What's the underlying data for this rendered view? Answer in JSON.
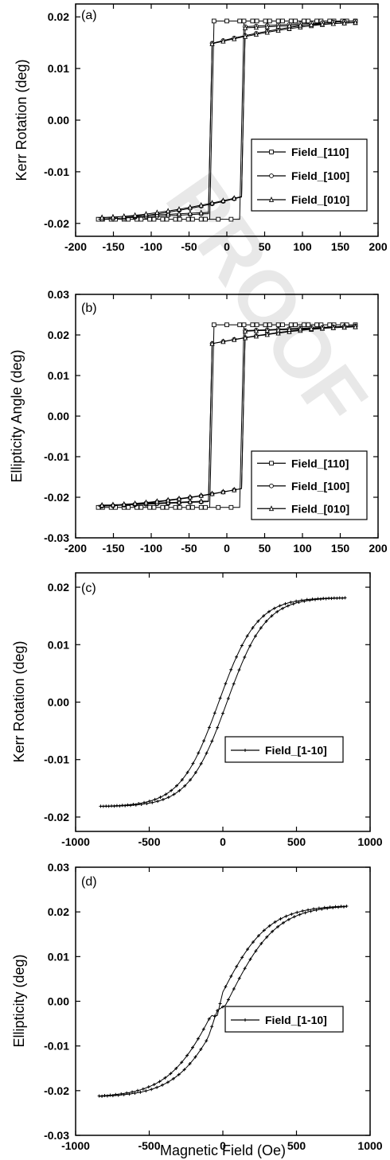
{
  "watermark": "PROOF",
  "chart_data": [
    {
      "type": "line",
      "panel_label": "(a)",
      "xlabel": "",
      "ylabel": "Kerr Rotation (deg)",
      "xlim": [
        -200,
        200
      ],
      "ylim": [
        -0.0225,
        0.0225
      ],
      "x_ticks": [
        -200,
        -150,
        -100,
        -50,
        0,
        50,
        100,
        150,
        200
      ],
      "x_tick_labels": [
        "-200",
        "-150",
        "-100",
        "-50",
        "0",
        "50",
        "100",
        "150",
        "200"
      ],
      "y_ticks": [
        -0.02,
        -0.01,
        0.0,
        0.01,
        0.02
      ],
      "y_tick_labels": [
        "-0.02",
        "-0.01",
        "0.00",
        "0.01",
        "0.02"
      ],
      "legend_position": "right",
      "series": [
        {
          "name": "Field_[110]",
          "marker": "square",
          "kind": "square",
          "Hc": 20,
          "sat": 0.0192,
          "tail_rise": 0,
          "tail_dir": 1,
          "edge": -0.0192
        },
        {
          "name": "Field_[100]",
          "marker": "circle",
          "kind": "tail",
          "Hc": 22,
          "sat": 0.0192,
          "tail_rise": 0.0044,
          "tail_dir": 1,
          "edge": -0.0192
        },
        {
          "name": "Field_[010]",
          "marker": "triangle",
          "kind": "tail",
          "Hc": 22,
          "sat": 0.0189,
          "tail_rise": 0.0042,
          "tail_dir": 1,
          "edge": -0.0189
        }
      ],
      "x_range": [
        -170,
        170
      ]
    },
    {
      "type": "line",
      "panel_label": "(b)",
      "xlabel": "",
      "ylabel": "Ellipticity Angle (deg)",
      "xlim": [
        -200,
        200
      ],
      "ylim": [
        -0.03,
        0.03
      ],
      "x_ticks": [
        -200,
        -150,
        -100,
        -50,
        0,
        50,
        100,
        150,
        200
      ],
      "x_tick_labels": [
        "-200",
        "-150",
        "-100",
        "-50",
        "0",
        "50",
        "100",
        "150",
        "200"
      ],
      "y_ticks": [
        -0.03,
        -0.02,
        -0.01,
        0.0,
        0.01,
        0.02,
        0.03
      ],
      "y_tick_labels": [
        "-0.03",
        "-0.02",
        "-0.01",
        "0.00",
        "0.01",
        "0.02",
        "0.03"
      ],
      "legend_position": "right",
      "series": [
        {
          "name": "Field_[110]",
          "marker": "square",
          "kind": "square",
          "Hc": 20,
          "sat": 0.0225,
          "tail_rise": 0,
          "tail_dir": 1,
          "edge": -0.0225
        },
        {
          "name": "Field_[100]",
          "marker": "circle",
          "kind": "tail",
          "Hc": 24,
          "sat": 0.0222,
          "tail_rise": 0.0045,
          "tail_dir": 1,
          "edge": -0.0222
        },
        {
          "name": "Field_[010]",
          "marker": "triangle",
          "kind": "tail",
          "Hc": 24,
          "sat": 0.022,
          "tail_rise": 0.0043,
          "tail_dir": 1,
          "edge": -0.022
        }
      ],
      "x_range": [
        -170,
        170
      ]
    },
    {
      "type": "line",
      "panel_label": "(c)",
      "xlabel": "",
      "ylabel": "Kerr Rotation (deg)",
      "xlim": [
        -1000,
        1000
      ],
      "ylim": [
        -0.0225,
        0.0225
      ],
      "x_ticks": [
        -1000,
        -500,
        0,
        500,
        1000
      ],
      "x_tick_labels": [
        "-1000",
        "-500",
        "0",
        "500",
        "1000"
      ],
      "y_ticks": [
        -0.02,
        -0.01,
        0.0,
        0.01,
        0.02
      ],
      "y_tick_labels": [
        "-0.02",
        "-0.01",
        "0.00",
        "0.01",
        "0.02"
      ],
      "legend_position": "lower-right",
      "series": [
        {
          "name": "Field_[1-10]",
          "marker": "plus",
          "kind": "hard",
          "sat": 0.0182,
          "width": 260,
          "shift": 28
        }
      ],
      "x_range": [
        -830,
        830
      ]
    },
    {
      "type": "line",
      "panel_label": "(d)",
      "xlabel": "Magnetic Field (Oe)",
      "ylabel": "Ellipticity (deg)",
      "xlim": [
        -1000,
        1000
      ],
      "ylim": [
        -0.03,
        0.03
      ],
      "x_ticks": [
        -1000,
        -500,
        0,
        500,
        1000
      ],
      "x_tick_labels": [
        "-1000",
        "-500",
        "0",
        "500",
        "1000"
      ],
      "y_ticks": [
        -0.03,
        -0.02,
        -0.01,
        0.0,
        0.01,
        0.02,
        0.03
      ],
      "y_tick_labels": [
        "-0.03",
        "-0.02",
        "-0.01",
        "0.00",
        "0.01",
        "0.02",
        "0.03"
      ],
      "legend_position": "lower-right",
      "series": [
        {
          "name": "Field_[1-10]",
          "marker": "plus",
          "kind": "hardjump",
          "sat": 0.0215,
          "width": 330,
          "shift": 32
        }
      ],
      "x_range": [
        -840,
        840
      ]
    }
  ]
}
